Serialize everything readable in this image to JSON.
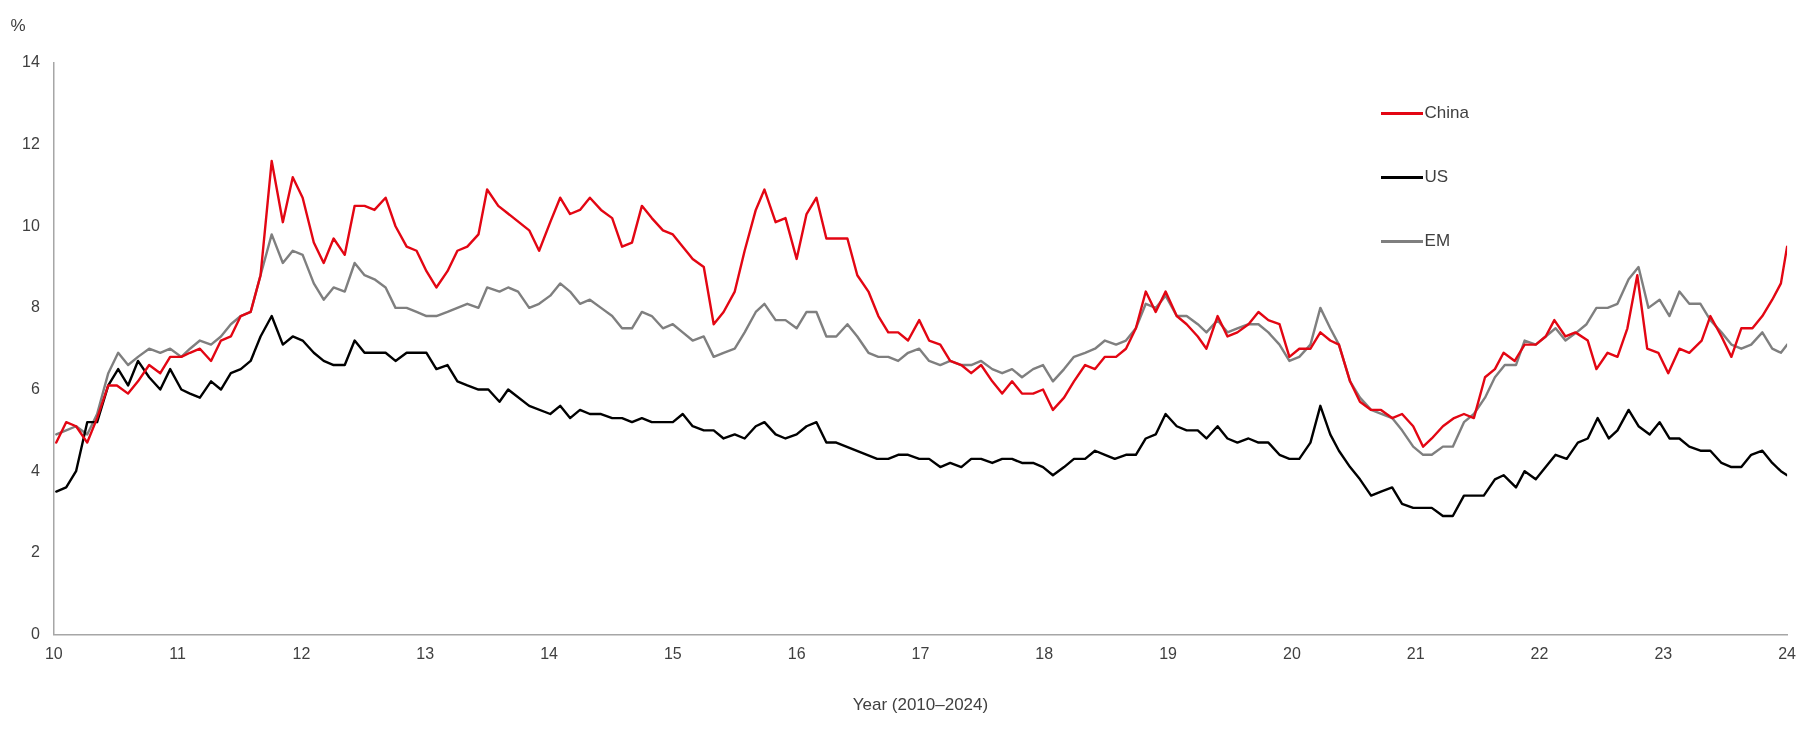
{
  "chart_data": {
    "type": "line",
    "ylabel": "%",
    "xlabel": "Year (2010–2024)",
    "xlim": [
      10,
      24
    ],
    "xticks": [
      10,
      11,
      12,
      13,
      14,
      15,
      16,
      17,
      18,
      19,
      20,
      21,
      22,
      23,
      24
    ],
    "ylim": [
      0,
      14
    ],
    "yticks": [
      0,
      2,
      4,
      6,
      8,
      10,
      12,
      14
    ],
    "grid": false,
    "legend": "top right",
    "marker": "none",
    "line_style": "solid",
    "series": [
      {
        "name": "China",
        "color": "#e30613",
        "x": [
          10.02,
          10.1,
          10.18,
          10.27,
          10.35,
          10.44,
          10.51,
          10.6,
          10.68,
          10.77,
          10.86,
          10.94,
          11.03,
          11.1,
          11.18,
          11.27,
          11.35,
          11.43,
          11.51,
          11.59,
          11.67,
          11.76,
          11.85,
          11.93,
          12.01,
          12.1,
          12.18,
          12.26,
          12.35,
          12.43,
          12.51,
          12.59,
          12.68,
          12.76,
          12.85,
          12.93,
          13.01,
          13.09,
          13.18,
          13.26,
          13.34,
          13.43,
          13.5,
          13.59,
          13.84,
          13.92,
          14.01,
          14.09,
          14.17,
          14.25,
          14.33,
          14.42,
          14.51,
          14.59,
          14.67,
          14.75,
          14.83,
          14.92,
          15.0,
          15.08,
          15.16,
          15.25,
          15.33,
          15.41,
          15.5,
          15.58,
          15.67,
          15.74,
          15.83,
          15.91,
          16.0,
          16.08,
          16.16,
          16.24,
          16.32,
          16.41,
          16.49,
          16.58,
          16.66,
          16.74,
          16.82,
          16.9,
          16.99,
          17.07,
          17.16,
          17.24,
          17.33,
          17.41,
          17.49,
          17.58,
          17.66,
          17.74,
          17.82,
          17.91,
          17.99,
          18.07,
          18.16,
          18.24,
          18.33,
          18.41,
          18.49,
          18.58,
          18.66,
          18.74,
          18.82,
          18.9,
          18.98,
          19.07,
          19.15,
          19.24,
          19.31,
          19.4,
          19.48,
          19.56,
          19.65,
          19.73,
          19.81,
          19.9,
          19.98,
          20.06,
          20.15,
          20.23,
          20.31,
          20.38,
          20.47,
          20.55,
          20.64,
          20.72,
          20.81,
          20.89,
          20.98,
          21.06,
          21.13,
          21.22,
          21.31,
          21.39,
          21.47,
          21.56,
          21.64,
          21.71,
          21.8,
          21.88,
          21.97,
          22.05,
          22.12,
          22.21,
          22.29,
          22.39,
          22.46,
          22.55,
          22.63,
          22.71,
          22.79,
          22.87,
          22.96,
          23.04,
          23.13,
          23.21,
          23.31,
          23.38,
          23.47,
          23.55,
          23.63,
          23.72,
          23.8,
          23.88,
          23.95,
          24.0
        ],
        "values": [
          4.7,
          5.2,
          5.1,
          4.7,
          5.3,
          6.1,
          6.1,
          5.9,
          6.2,
          6.6,
          6.4,
          6.8,
          6.8,
          6.9,
          7.0,
          6.7,
          7.2,
          7.3,
          7.8,
          7.9,
          8.8,
          11.6,
          10.1,
          11.2,
          10.7,
          9.6,
          9.1,
          9.7,
          9.3,
          10.5,
          10.5,
          10.4,
          10.7,
          10.0,
          9.5,
          9.4,
          8.9,
          8.5,
          8.9,
          9.4,
          9.5,
          9.8,
          10.9,
          10.5,
          9.9,
          9.4,
          10.1,
          10.7,
          10.3,
          10.4,
          10.7,
          10.4,
          10.2,
          9.5,
          9.6,
          10.5,
          10.2,
          9.9,
          9.8,
          9.5,
          9.2,
          9.0,
          7.6,
          7.9,
          8.4,
          9.4,
          10.4,
          10.9,
          10.1,
          10.2,
          9.2,
          10.3,
          10.7,
          9.7,
          9.7,
          9.7,
          8.8,
          8.4,
          7.8,
          7.4,
          7.4,
          7.2,
          7.7,
          7.2,
          7.1,
          6.7,
          6.6,
          6.4,
          6.6,
          6.2,
          5.9,
          6.2,
          5.9,
          5.9,
          6.0,
          5.5,
          5.8,
          6.2,
          6.6,
          6.5,
          6.8,
          6.8,
          7.0,
          7.5,
          8.4,
          7.9,
          8.4,
          7.8,
          7.6,
          7.3,
          7.0,
          7.8,
          7.3,
          7.4,
          7.6,
          7.9,
          7.7,
          7.6,
          6.8,
          7.0,
          7.0,
          7.4,
          7.2,
          7.1,
          6.2,
          5.7,
          5.5,
          5.5,
          5.3,
          5.4,
          5.1,
          4.6,
          4.8,
          5.1,
          5.3,
          5.4,
          5.3,
          6.3,
          6.5,
          6.9,
          6.7,
          7.1,
          7.1,
          7.3,
          7.7,
          7.3,
          7.4,
          7.2,
          6.5,
          6.9,
          6.8,
          7.5,
          8.8,
          7.0,
          6.9,
          6.4,
          7.0,
          6.9,
          7.2,
          7.8,
          7.3,
          6.8,
          7.5,
          7.5,
          7.8,
          8.2,
          8.6,
          9.5
        ]
      },
      {
        "name": "US",
        "color": "#000000",
        "x": [
          10.02,
          10.1,
          10.18,
          10.27,
          10.35,
          10.44,
          10.52,
          10.6,
          10.68,
          10.77,
          10.86,
          10.94,
          11.03,
          11.1,
          11.18,
          11.27,
          11.35,
          11.43,
          11.51,
          11.59,
          11.67,
          11.76,
          11.85,
          11.93,
          12.01,
          12.1,
          12.18,
          12.26,
          12.35,
          12.43,
          12.51,
          12.68,
          12.76,
          12.85,
          13.01,
          13.09,
          13.18,
          13.26,
          13.34,
          13.43,
          13.51,
          13.6,
          13.67,
          13.84,
          14.01,
          14.09,
          14.17,
          14.25,
          14.33,
          14.42,
          14.51,
          14.59,
          14.67,
          14.75,
          14.83,
          15.0,
          15.08,
          15.16,
          15.25,
          15.33,
          15.41,
          15.5,
          15.58,
          15.67,
          15.74,
          15.83,
          15.91,
          16.0,
          16.08,
          16.16,
          16.24,
          16.32,
          16.65,
          16.74,
          16.82,
          16.9,
          16.99,
          17.07,
          17.16,
          17.24,
          17.33,
          17.41,
          17.49,
          17.58,
          17.66,
          17.74,
          17.82,
          17.91,
          17.99,
          18.07,
          18.16,
          18.24,
          18.33,
          18.41,
          18.49,
          18.57,
          18.66,
          18.74,
          18.82,
          18.9,
          18.98,
          19.07,
          19.15,
          19.24,
          19.31,
          19.4,
          19.48,
          19.56,
          19.65,
          19.73,
          19.81,
          19.9,
          19.98,
          20.06,
          20.15,
          20.23,
          20.31,
          20.38,
          20.47,
          20.55,
          20.64,
          20.72,
          20.81,
          20.89,
          20.98,
          21.13,
          21.22,
          21.3,
          21.39,
          21.55,
          21.64,
          21.71,
          21.81,
          21.88,
          21.97,
          22.05,
          22.13,
          22.22,
          22.31,
          22.39,
          22.47,
          22.56,
          22.63,
          22.72,
          22.8,
          22.89,
          22.97,
          23.05,
          23.13,
          23.21,
          23.3,
          23.38,
          23.47,
          23.55,
          23.63,
          23.71,
          23.8,
          23.88,
          23.95,
          24.0
        ],
        "values": [
          3.5,
          3.6,
          4.0,
          5.2,
          5.2,
          6.1,
          6.5,
          6.1,
          6.7,
          6.3,
          6.0,
          6.5,
          6.0,
          5.9,
          5.8,
          6.2,
          6.0,
          6.4,
          6.5,
          6.7,
          7.3,
          7.8,
          7.1,
          7.3,
          7.2,
          6.9,
          6.7,
          6.6,
          6.6,
          7.2,
          6.9,
          6.9,
          6.7,
          6.9,
          6.9,
          6.5,
          6.6,
          6.2,
          6.1,
          6.0,
          6.0,
          5.7,
          6.0,
          5.6,
          5.4,
          5.6,
          5.3,
          5.5,
          5.4,
          5.4,
          5.3,
          5.3,
          5.2,
          5.3,
          5.2,
          5.2,
          5.4,
          5.1,
          5.0,
          5.0,
          4.8,
          4.9,
          4.8,
          5.1,
          5.2,
          4.9,
          4.8,
          4.9,
          5.1,
          5.2,
          4.7,
          4.7,
          4.3,
          4.3,
          4.4,
          4.4,
          4.3,
          4.3,
          4.1,
          4.2,
          4.1,
          4.3,
          4.3,
          4.2,
          4.3,
          4.3,
          4.2,
          4.2,
          4.1,
          3.9,
          4.1,
          4.3,
          4.3,
          4.5,
          4.4,
          4.3,
          4.4,
          4.4,
          4.8,
          4.9,
          5.4,
          5.1,
          5.0,
          5.0,
          4.8,
          5.1,
          4.8,
          4.7,
          4.8,
          4.7,
          4.7,
          4.4,
          4.3,
          4.3,
          4.7,
          5.6,
          4.9,
          4.5,
          4.1,
          3.8,
          3.4,
          3.5,
          3.6,
          3.2,
          3.1,
          3.1,
          2.9,
          2.9,
          3.4,
          3.4,
          3.8,
          3.9,
          3.6,
          4.0,
          3.8,
          4.1,
          4.4,
          4.3,
          4.7,
          4.8,
          5.3,
          4.8,
          5.0,
          5.5,
          5.1,
          4.9,
          5.2,
          4.8,
          4.8,
          4.6,
          4.5,
          4.5,
          4.2,
          4.1,
          4.1,
          4.4,
          4.5,
          4.2,
          4.0,
          3.9
        ]
      },
      {
        "name": "EM",
        "color": "#7f7f7f",
        "x": [
          10.02,
          10.1,
          10.18,
          10.27,
          10.35,
          10.44,
          10.52,
          10.6,
          10.68,
          10.77,
          10.86,
          10.94,
          11.03,
          11.1,
          11.18,
          11.27,
          11.35,
          11.43,
          11.51,
          11.59,
          11.67,
          11.76,
          11.85,
          11.93,
          12.01,
          12.1,
          12.18,
          12.26,
          12.35,
          12.43,
          12.51,
          12.59,
          12.68,
          12.76,
          12.85,
          12.93,
          13.01,
          13.09,
          13.18,
          13.26,
          13.34,
          13.43,
          13.5,
          13.6,
          13.67,
          13.75,
          13.84,
          13.92,
          14.01,
          14.09,
          14.17,
          14.25,
          14.33,
          14.42,
          14.51,
          14.59,
          14.67,
          14.75,
          14.83,
          14.92,
          15.0,
          15.08,
          15.16,
          15.25,
          15.33,
          15.41,
          15.5,
          15.58,
          15.67,
          15.74,
          15.83,
          15.91,
          16.0,
          16.08,
          16.16,
          16.24,
          16.32,
          16.41,
          16.49,
          16.58,
          16.66,
          16.74,
          16.82,
          16.9,
          16.99,
          17.07,
          17.16,
          17.24,
          17.33,
          17.41,
          17.49,
          17.58,
          17.66,
          17.74,
          17.82,
          17.91,
          17.99,
          18.07,
          18.16,
          18.24,
          18.33,
          18.41,
          18.49,
          18.58,
          18.66,
          18.74,
          18.82,
          18.9,
          18.98,
          19.07,
          19.15,
          19.24,
          19.31,
          19.4,
          19.48,
          19.56,
          19.65,
          19.73,
          19.81,
          19.9,
          19.98,
          20.06,
          20.15,
          20.23,
          20.31,
          20.38,
          20.47,
          20.55,
          20.64,
          20.81,
          20.89,
          20.98,
          21.06,
          21.13,
          21.22,
          21.3,
          21.39,
          21.47,
          21.56,
          21.64,
          21.72,
          21.81,
          21.88,
          21.97,
          22.05,
          22.13,
          22.21,
          22.3,
          22.38,
          22.46,
          22.55,
          22.63,
          22.72,
          22.8,
          22.88,
          22.97,
          23.05,
          23.13,
          23.21,
          23.3,
          23.38,
          23.47,
          23.55,
          23.63,
          23.71,
          23.8,
          23.88,
          23.95,
          24.0
        ],
        "values": [
          4.9,
          5.0,
          5.1,
          4.9,
          5.4,
          6.4,
          6.9,
          6.6,
          6.8,
          7.0,
          6.9,
          7.0,
          6.8,
          7.0,
          7.2,
          7.1,
          7.3,
          7.6,
          7.8,
          7.9,
          8.8,
          9.8,
          9.1,
          9.4,
          9.3,
          8.6,
          8.2,
          8.5,
          8.4,
          9.1,
          8.8,
          8.7,
          8.5,
          8.0,
          8.0,
          7.9,
          7.8,
          7.8,
          7.9,
          8.0,
          8.1,
          8.0,
          8.5,
          8.4,
          8.5,
          8.4,
          8.0,
          8.1,
          8.3,
          8.6,
          8.4,
          8.1,
          8.2,
          8.0,
          7.8,
          7.5,
          7.5,
          7.9,
          7.8,
          7.5,
          7.6,
          7.4,
          7.2,
          7.3,
          6.8,
          6.9,
          7.0,
          7.4,
          7.9,
          8.1,
          7.7,
          7.7,
          7.5,
          7.9,
          7.9,
          7.3,
          7.3,
          7.6,
          7.3,
          6.9,
          6.8,
          6.8,
          6.7,
          6.9,
          7.0,
          6.7,
          6.6,
          6.7,
          6.6,
          6.6,
          6.7,
          6.5,
          6.4,
          6.5,
          6.3,
          6.5,
          6.6,
          6.2,
          6.5,
          6.8,
          6.9,
          7.0,
          7.2,
          7.1,
          7.2,
          7.5,
          8.1,
          8.0,
          8.3,
          7.8,
          7.8,
          7.6,
          7.4,
          7.7,
          7.4,
          7.5,
          7.6,
          7.6,
          7.4,
          7.1,
          6.7,
          6.8,
          7.1,
          8.0,
          7.5,
          7.1,
          6.2,
          5.8,
          5.5,
          5.3,
          5.0,
          4.6,
          4.4,
          4.4,
          4.6,
          4.6,
          5.2,
          5.4,
          5.8,
          6.3,
          6.6,
          6.6,
          7.2,
          7.1,
          7.3,
          7.5,
          7.2,
          7.4,
          7.6,
          8.0,
          8.0,
          8.1,
          8.7,
          9.0,
          8.0,
          8.2,
          7.8,
          8.4,
          8.1,
          8.1,
          7.7,
          7.4,
          7.1,
          7.0,
          7.1,
          7.4,
          7.0,
          6.9,
          7.1
        ]
      }
    ]
  }
}
